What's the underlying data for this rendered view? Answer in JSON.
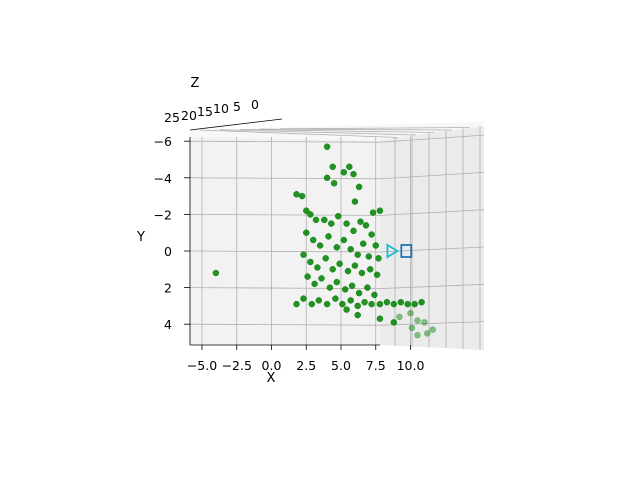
{
  "chart_data": {
    "type": "scatter",
    "projection": "3d",
    "title": "",
    "xlabel": "X",
    "ylabel": "Y",
    "zlabel": "Z",
    "x_ticks": [
      "−5.0",
      "−2.5",
      "0.0",
      "2.5",
      "5.0",
      "7.5",
      "10.0"
    ],
    "y_ticks": [
      "−6",
      "−4",
      "−2",
      "0",
      "2",
      "4"
    ],
    "z_ticks": [
      "25",
      "20",
      "15",
      "10",
      "5",
      "0"
    ],
    "xlim": [
      -5.5,
      11.5
    ],
    "ylim": [
      -6.5,
      5.2
    ],
    "y_axis_inverted": true,
    "grid": true,
    "series": [
      {
        "marker": "circle",
        "color": "#008000",
        "points": [
          [
            -4.0,
            1.2
          ],
          [
            4.0,
            -5.7
          ],
          [
            4.4,
            -4.6
          ],
          [
            4.0,
            -4.0
          ],
          [
            4.5,
            -3.7
          ],
          [
            5.2,
            -4.3
          ],
          [
            5.6,
            -4.6
          ],
          [
            5.9,
            -4.2
          ],
          [
            6.3,
            -3.5
          ],
          [
            6.0,
            -2.7
          ],
          [
            7.3,
            -2.1
          ],
          [
            7.8,
            -2.2
          ],
          [
            1.8,
            -3.1
          ],
          [
            2.2,
            -3.0
          ],
          [
            2.5,
            -2.2
          ],
          [
            2.8,
            -2.0
          ],
          [
            3.2,
            -1.7
          ],
          [
            3.8,
            -1.7
          ],
          [
            4.3,
            -1.5
          ],
          [
            4.8,
            -1.9
          ],
          [
            5.4,
            -1.5
          ],
          [
            5.9,
            -1.1
          ],
          [
            6.4,
            -1.6
          ],
          [
            6.8,
            -1.4
          ],
          [
            7.2,
            -0.9
          ],
          [
            7.5,
            -0.3
          ],
          [
            2.5,
            -1.0
          ],
          [
            3.0,
            -0.6
          ],
          [
            3.5,
            -0.3
          ],
          [
            4.1,
            -0.8
          ],
          [
            4.7,
            -0.2
          ],
          [
            5.2,
            -0.6
          ],
          [
            5.7,
            -0.1
          ],
          [
            6.2,
            0.2
          ],
          [
            6.6,
            -0.4
          ],
          [
            7.0,
            0.3
          ],
          [
            7.7,
            0.4
          ],
          [
            2.3,
            0.2
          ],
          [
            2.8,
            0.6
          ],
          [
            3.3,
            0.9
          ],
          [
            3.9,
            0.4
          ],
          [
            4.4,
            1.0
          ],
          [
            4.9,
            0.7
          ],
          [
            5.5,
            1.1
          ],
          [
            6.0,
            0.8
          ],
          [
            6.5,
            1.2
          ],
          [
            7.1,
            1.0
          ],
          [
            7.6,
            1.3
          ],
          [
            2.6,
            1.4
          ],
          [
            3.1,
            1.8
          ],
          [
            3.6,
            1.5
          ],
          [
            4.2,
            2.0
          ],
          [
            4.7,
            1.7
          ],
          [
            5.3,
            2.1
          ],
          [
            5.8,
            1.9
          ],
          [
            6.3,
            2.3
          ],
          [
            6.9,
            2.0
          ],
          [
            7.4,
            2.4
          ],
          [
            1.8,
            2.9
          ],
          [
            2.3,
            2.6
          ],
          [
            2.9,
            2.9
          ],
          [
            3.4,
            2.7
          ],
          [
            4.0,
            2.9
          ],
          [
            4.6,
            2.6
          ],
          [
            5.1,
            2.9
          ],
          [
            5.7,
            2.7
          ],
          [
            6.2,
            3.0
          ],
          [
            6.7,
            2.8
          ],
          [
            7.2,
            2.9
          ],
          [
            7.8,
            2.9
          ],
          [
            8.3,
            2.8
          ],
          [
            8.8,
            2.9
          ],
          [
            9.3,
            2.8
          ],
          [
            9.8,
            2.9
          ],
          [
            10.3,
            2.9
          ],
          [
            10.8,
            2.8
          ],
          [
            7.8,
            3.7
          ],
          [
            9.2,
            3.6
          ],
          [
            10.0,
            3.4
          ],
          [
            10.5,
            3.8
          ],
          [
            11.0,
            3.9
          ],
          [
            11.6,
            4.3
          ],
          [
            10.1,
            4.2
          ],
          [
            10.5,
            4.6
          ],
          [
            11.2,
            4.5
          ],
          [
            8.8,
            3.9
          ],
          [
            6.2,
            3.5
          ],
          [
            5.4,
            3.2
          ]
        ]
      }
    ],
    "markers": [
      {
        "shape": "triangle-right",
        "color": "#17becf",
        "x": 8.7,
        "y": 0.0
      },
      {
        "shape": "square",
        "color": "#1f77b4",
        "x": 9.7,
        "y": 0.0
      }
    ]
  }
}
